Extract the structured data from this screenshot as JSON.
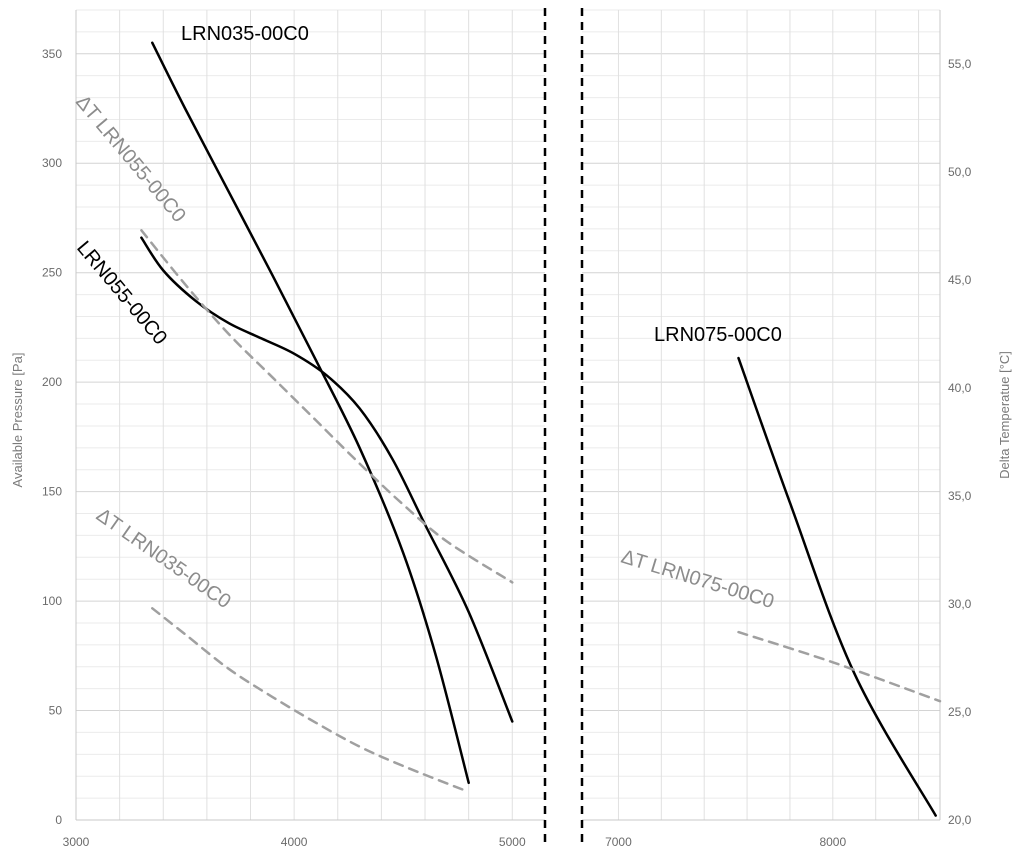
{
  "chart_data": {
    "type": "line",
    "xlabel": "",
    "ylabel_left": "Available Pressure [Pa]",
    "ylabel_right": "Delta Temperatue [°C]",
    "ylim_left": [
      0,
      370
    ],
    "ylim_right": [
      20,
      57.5
    ],
    "left_ticks": [
      "0",
      "50",
      "100",
      "150",
      "200",
      "250",
      "300",
      "350"
    ],
    "right_ticks": [
      "20,0",
      "25,0",
      "30,0",
      "35,0",
      "40,0",
      "45,0",
      "50,0",
      "55,0"
    ],
    "grid": true,
    "panels": [
      {
        "name": "left",
        "xlim": [
          3000,
          5150
        ],
        "x_ticks": [
          "3000",
          "4000",
          "5000"
        ]
      },
      {
        "name": "right",
        "xlim": [
          6830,
          8500
        ],
        "x_ticks": [
          "7000",
          "8000"
        ]
      }
    ],
    "series": [
      {
        "name": "LRN035-00C0",
        "axis": "left",
        "panel": "left",
        "style": "solid",
        "color": "#000000",
        "points": [
          [
            3350,
            355
          ],
          [
            3500,
            325
          ],
          [
            3700,
            287
          ],
          [
            3900,
            249
          ],
          [
            4100,
            210
          ],
          [
            4300,
            170
          ],
          [
            4500,
            122
          ],
          [
            4650,
            75
          ],
          [
            4800,
            17
          ]
        ]
      },
      {
        "name": "LRN055-00C0",
        "axis": "left",
        "panel": "left",
        "style": "solid",
        "color": "#000000",
        "points": [
          [
            3300,
            266
          ],
          [
            3400,
            251
          ],
          [
            3550,
            237
          ],
          [
            3700,
            227
          ],
          [
            3850,
            220
          ],
          [
            4000,
            213
          ],
          [
            4150,
            203
          ],
          [
            4300,
            188
          ],
          [
            4450,
            165
          ],
          [
            4600,
            135
          ],
          [
            4800,
            95
          ],
          [
            5000,
            45
          ]
        ]
      },
      {
        "name": "ΔT LRN055-00C0",
        "axis": "right",
        "panel": "left",
        "style": "dashed",
        "color": "#a0a0a0",
        "points": [
          [
            3300,
            47.3
          ],
          [
            3500,
            44.8
          ],
          [
            3700,
            42.5
          ],
          [
            3900,
            40.5
          ],
          [
            4100,
            38.5
          ],
          [
            4300,
            36.5
          ],
          [
            4500,
            34.6
          ],
          [
            4700,
            32.9
          ],
          [
            5000,
            31.0
          ]
        ]
      },
      {
        "name": "ΔT LRN035-00C0",
        "axis": "right",
        "panel": "left",
        "style": "dashed",
        "color": "#a0a0a0",
        "points": [
          [
            3350,
            29.8
          ],
          [
            3500,
            28.6
          ],
          [
            3700,
            27.0
          ],
          [
            3900,
            25.7
          ],
          [
            4100,
            24.5
          ],
          [
            4300,
            23.4
          ],
          [
            4500,
            22.5
          ],
          [
            4800,
            21.3
          ]
        ]
      },
      {
        "name": "LRN075-00C0",
        "axis": "left",
        "panel": "right",
        "style": "solid",
        "color": "#000000",
        "points": [
          [
            7560,
            211
          ],
          [
            7800,
            145
          ],
          [
            8100,
            67
          ],
          [
            8480,
            2
          ]
        ]
      },
      {
        "name": "ΔT LRN075-00C0",
        "axis": "right",
        "panel": "right",
        "style": "dashed",
        "color": "#a0a0a0",
        "points": [
          [
            7560,
            28.7
          ],
          [
            8000,
            27.3
          ],
          [
            8500,
            25.5
          ]
        ]
      }
    ],
    "annotations": [
      {
        "text": "LRN035-00C0",
        "color": "black"
      },
      {
        "text": "ΔT LRN055-00C0",
        "color": "grey"
      },
      {
        "text": "LRN055-00C0",
        "color": "black"
      },
      {
        "text": "ΔT LRN035-00C0",
        "color": "grey"
      },
      {
        "text": "LRN075-00C0",
        "color": "black"
      },
      {
        "text": "ΔT LRN075-00C0",
        "color": "grey"
      }
    ]
  }
}
